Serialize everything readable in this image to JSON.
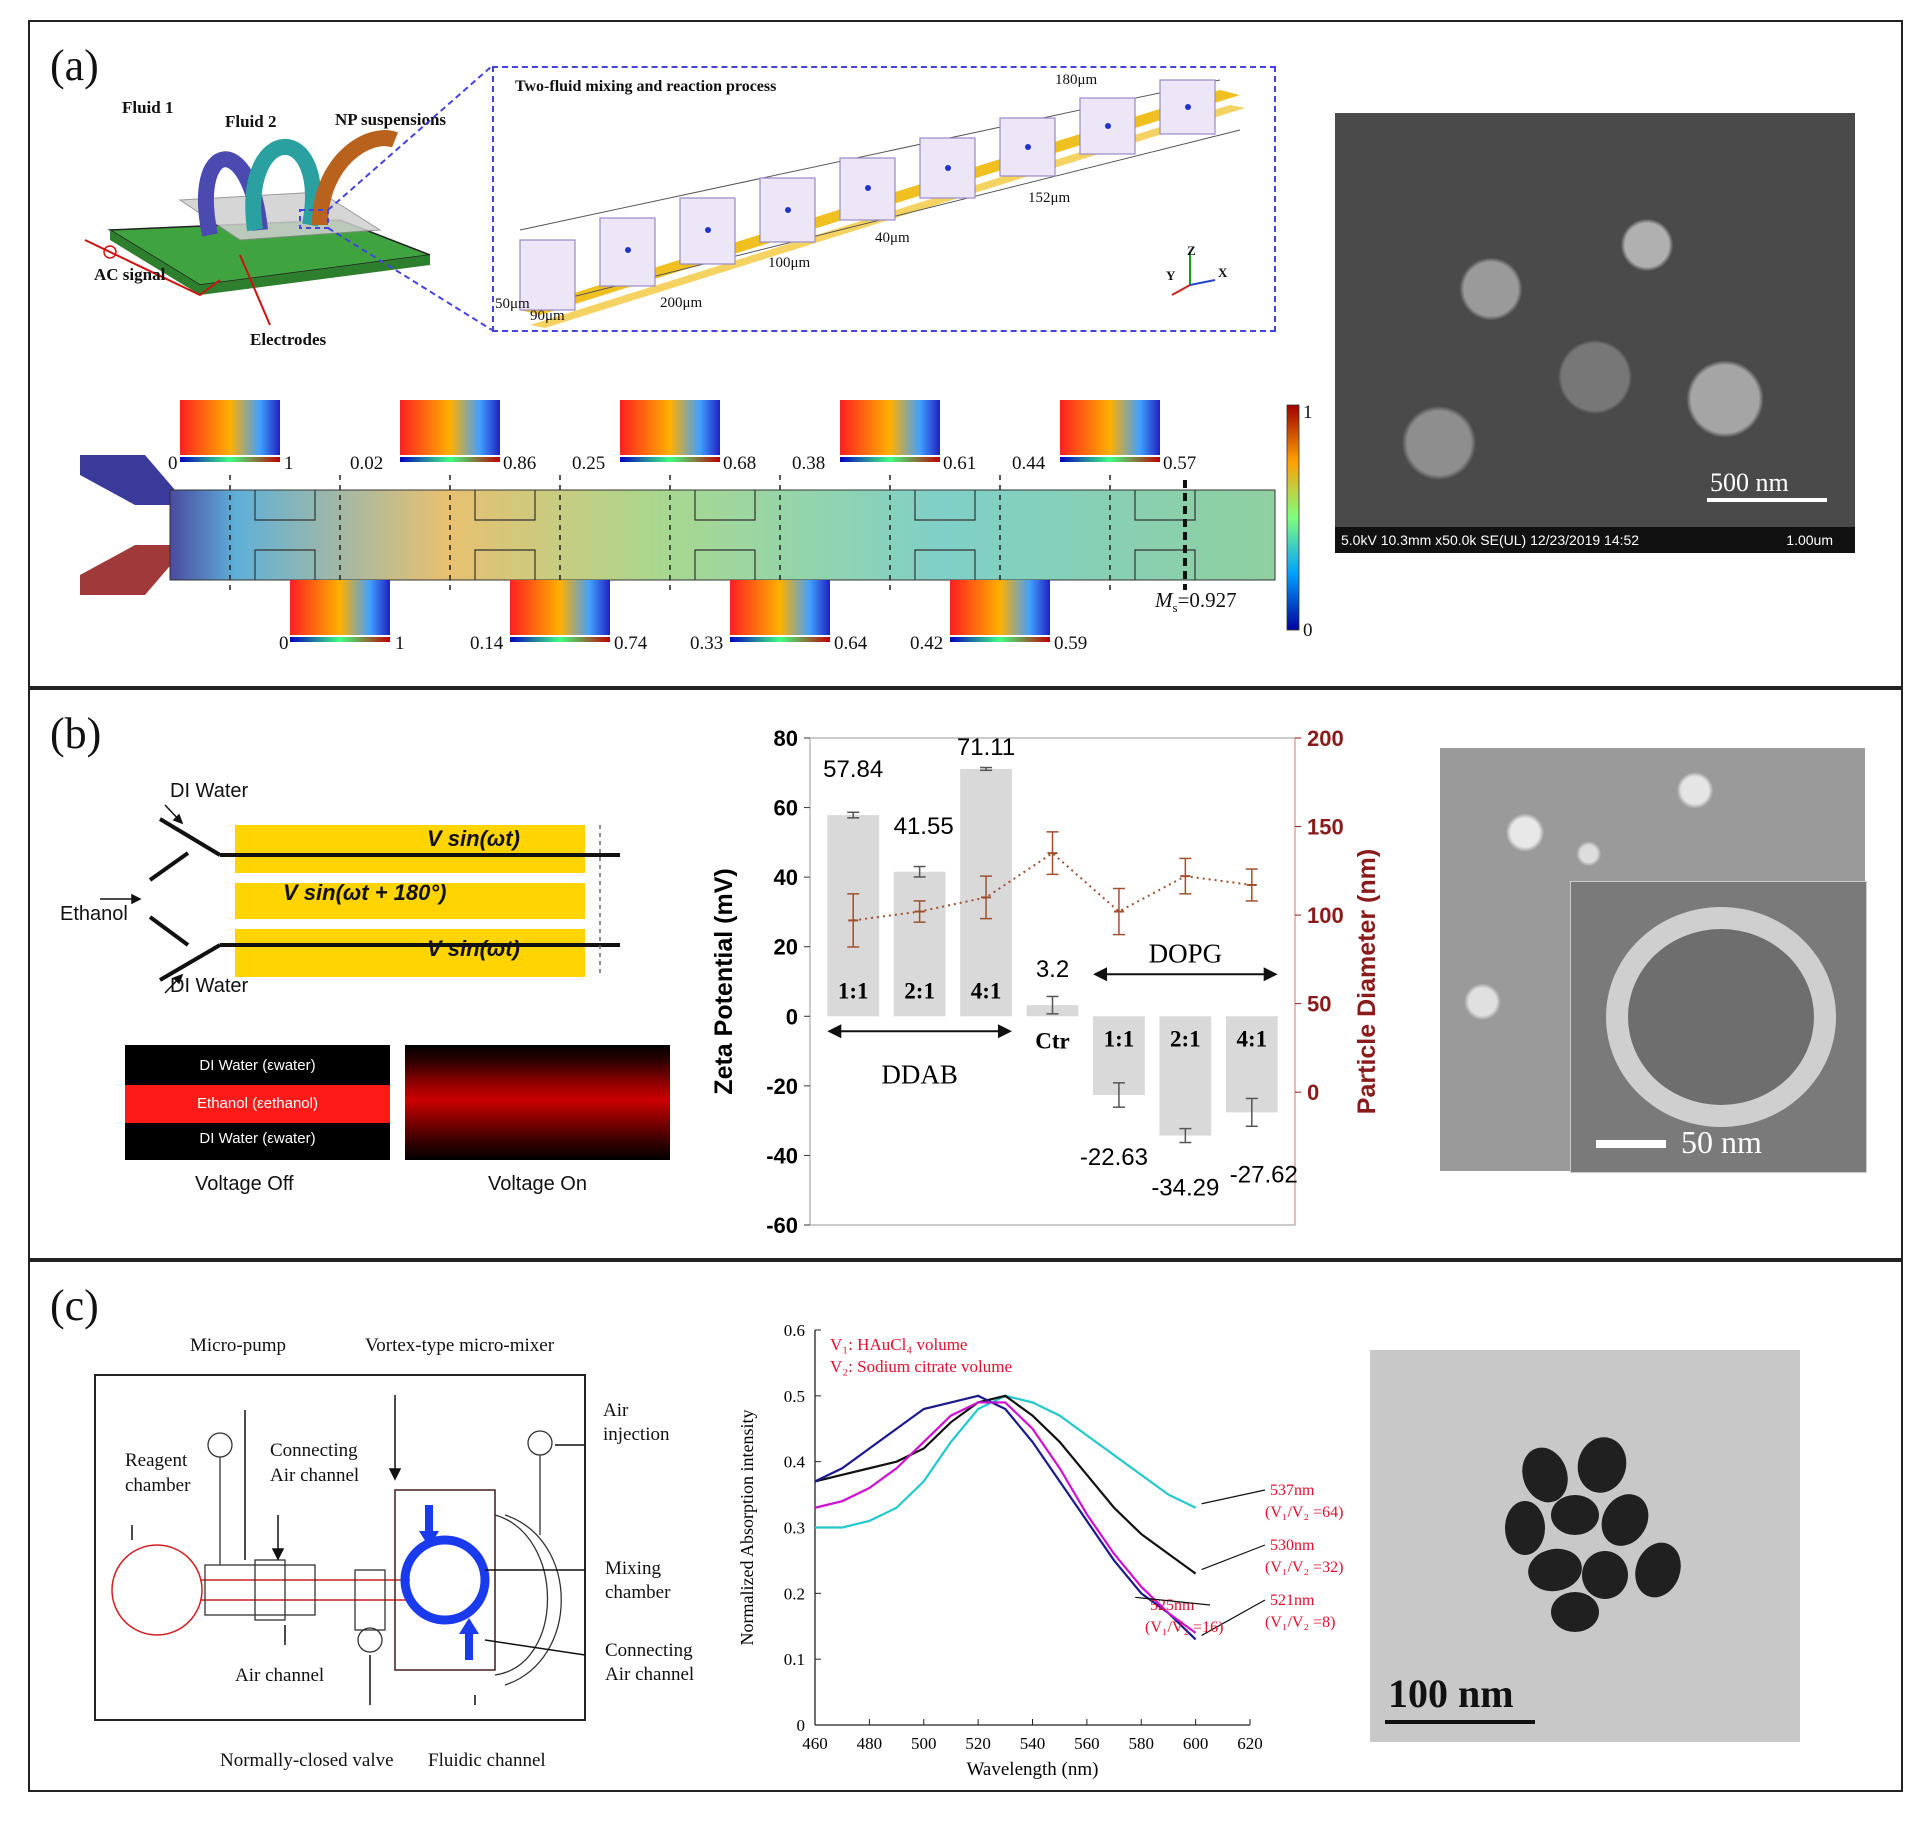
{
  "panel_labels": {
    "a": "(a)",
    "b": "(b)",
    "c": "(c)"
  },
  "panel_a": {
    "chip_labels": {
      "fluid1": "Fluid 1",
      "fluid2": "Fluid 2",
      "np": "NP suspensions",
      "ac": "AC signal",
      "electrodes": "Electrodes"
    },
    "zoom_box": {
      "title": "Two-fluid mixing and reaction process",
      "dims": {
        "d180": "180μm",
        "d152": "152μm",
        "d40": "40μm",
        "d100": "100μm",
        "d200": "200μm",
        "d50": "50μm",
        "d90": "90μm"
      },
      "axes": {
        "z": "Z",
        "y": "Y",
        "x": "X"
      }
    },
    "sim": {
      "top_ranges": [
        {
          "min": "0",
          "max": "1"
        },
        {
          "min": "0.02",
          "max": "0.86"
        },
        {
          "min": "0.25",
          "max": "0.68"
        },
        {
          "min": "0.38",
          "max": "0.61"
        },
        {
          "min": "0.44",
          "max": "0.57"
        }
      ],
      "bottom_ranges": [
        {
          "min": "0",
          "max": "1"
        },
        {
          "min": "0.14",
          "max": "0.74"
        },
        {
          "min": "0.33",
          "max": "0.64"
        },
        {
          "min": "0.42",
          "max": "0.59"
        }
      ],
      "mixing_index_symbol": "M",
      "mixing_index_sub": "s",
      "mixing_index_value": "=0.927",
      "colorbar_max": "1",
      "colorbar_min": "0"
    },
    "sem": {
      "scale": "500 nm",
      "footer": "5.0kV 10.3mm x50.0k SE(UL) 12/23/2019 14:52",
      "footer_scale": "1.00um"
    }
  },
  "panel_b": {
    "schematic": {
      "di_water_top": "DI Water",
      "ethanol": "Ethanol",
      "di_water_bottom": "DI Water",
      "electrode_top": "V sin(ωt)",
      "electrode_mid": "V sin(ωt + 180°)",
      "electrode_bottom": "V sin(ωt)",
      "fluor_top": "DI Water (εwater)",
      "fluor_mid": "Ethanol (εethanol)",
      "fluor_bottom": "DI Water (εwater)",
      "voltage_off": "Voltage Off",
      "voltage_on": "Voltage On"
    },
    "tem": {
      "scale": "50 nm"
    }
  },
  "panel_c": {
    "device": {
      "micropump": "Micro-pump",
      "vortex": "Vortex-type micro-mixer",
      "air_injection_1": "Air",
      "air_injection_2": "injection",
      "connecting_1": "Connecting",
      "connecting_2": "Air channel",
      "reagent_1": "Reagent",
      "reagent_2": "chamber",
      "mixing_1": "Mixing",
      "mixing_2": "chamber",
      "connecting_b1": "Connecting",
      "connecting_b2": "Air channel",
      "air_channel": "Air channel",
      "valve": "Normally-closed valve",
      "fluidic": "Fluidic channel"
    },
    "tem": {
      "scale": "100 nm"
    }
  },
  "chart_data": [
    {
      "type": "bar",
      "categories": [
        "1:1",
        "2:1",
        "4:1",
        "Ctr",
        "1:1",
        "2:1",
        "4:1"
      ],
      "groups": [
        {
          "name": "DDAB",
          "indices": [
            0,
            1,
            2
          ]
        },
        {
          "name": "DOPG",
          "indices": [
            4,
            5,
            6
          ]
        }
      ],
      "series": [
        {
          "values": [
            57.84,
            41.55,
            71.11,
            3.2,
            -22.63,
            -34.29,
            -27.62
          ],
          "errors": [
            0.8,
            1.5,
            0.4,
            2.5,
            3.5,
            2.0,
            4.0
          ],
          "axis": "left"
        },
        {
          "values": [
            97,
            102,
            110,
            135,
            102,
            122,
            117
          ],
          "errors": [
            15,
            6,
            12,
            12,
            13,
            10,
            9
          ],
          "axis": "right",
          "style": "dotted-line"
        }
      ],
      "data_labels": [
        "57.84",
        "41.55",
        "71.11",
        "3.2",
        "-22.63",
        "-34.29",
        "-27.62"
      ],
      "ylabel": "Zeta Potential (mV)",
      "y2label": "Particle Diameter (nm)",
      "ylim": [
        -60,
        80
      ],
      "y2lim": [
        -75,
        200
      ],
      "yticks": [
        -60,
        -40,
        -20,
        0,
        20,
        40,
        60,
        80
      ],
      "y2ticks": [
        0,
        50,
        100,
        150,
        200
      ],
      "colors": {
        "bars": "#d9d9d9",
        "diameter": "#a0502f",
        "right_axis": "#8b1a1a"
      }
    },
    {
      "type": "line",
      "xlabel": "Wavelength (nm)",
      "ylabel": "Normalized Absorption intensity",
      "xlim": [
        460,
        620
      ],
      "ylim": [
        0,
        0.6
      ],
      "xticks": [
        460,
        480,
        500,
        520,
        540,
        560,
        580,
        600,
        620
      ],
      "yticks": [
        0,
        0.1,
        0.2,
        0.3,
        0.4,
        0.5,
        0.6
      ],
      "legend_lines": [
        "V₁: HAuCl₄ volume",
        "V₂: Sodium citrate volume"
      ],
      "series": [
        {
          "color": "#22c8cc",
          "peak_label": "537nm",
          "ratio_label": "(V₁/V₂ =64)",
          "x": [
            460,
            470,
            480,
            490,
            500,
            510,
            520,
            530,
            540,
            550,
            560,
            570,
            580,
            590,
            600
          ],
          "y": [
            0.3,
            0.3,
            0.31,
            0.33,
            0.37,
            0.43,
            0.48,
            0.5,
            0.49,
            0.47,
            0.44,
            0.41,
            0.38,
            0.35,
            0.33
          ]
        },
        {
          "color": "#111111",
          "peak_label": "530nm",
          "ratio_label": "(V₁/V₂ =32)",
          "x": [
            460,
            470,
            480,
            490,
            500,
            510,
            520,
            530,
            540,
            550,
            560,
            570,
            580,
            590,
            600
          ],
          "y": [
            0.37,
            0.38,
            0.39,
            0.4,
            0.42,
            0.46,
            0.49,
            0.5,
            0.47,
            0.43,
            0.38,
            0.33,
            0.29,
            0.26,
            0.23
          ]
        },
        {
          "color": "#1a1a8c",
          "peak_label": "521nm",
          "ratio_label": "(V₁/V₂ =8)",
          "x": [
            460,
            470,
            480,
            490,
            500,
            510,
            520,
            530,
            540,
            550,
            560,
            570,
            580,
            590,
            600
          ],
          "y": [
            0.37,
            0.39,
            0.42,
            0.45,
            0.48,
            0.49,
            0.5,
            0.48,
            0.43,
            0.37,
            0.31,
            0.25,
            0.2,
            0.17,
            0.13
          ]
        },
        {
          "color": "#d010d0",
          "peak_label": "525nm",
          "ratio_label": "(V₁/V₂ =16)",
          "x": [
            460,
            470,
            480,
            490,
            500,
            510,
            520,
            530,
            540,
            550,
            560,
            570,
            580,
            590,
            600
          ],
          "y": [
            0.33,
            0.34,
            0.36,
            0.39,
            0.43,
            0.47,
            0.49,
            0.49,
            0.45,
            0.39,
            0.32,
            0.26,
            0.21,
            0.17,
            0.14
          ]
        }
      ]
    }
  ]
}
